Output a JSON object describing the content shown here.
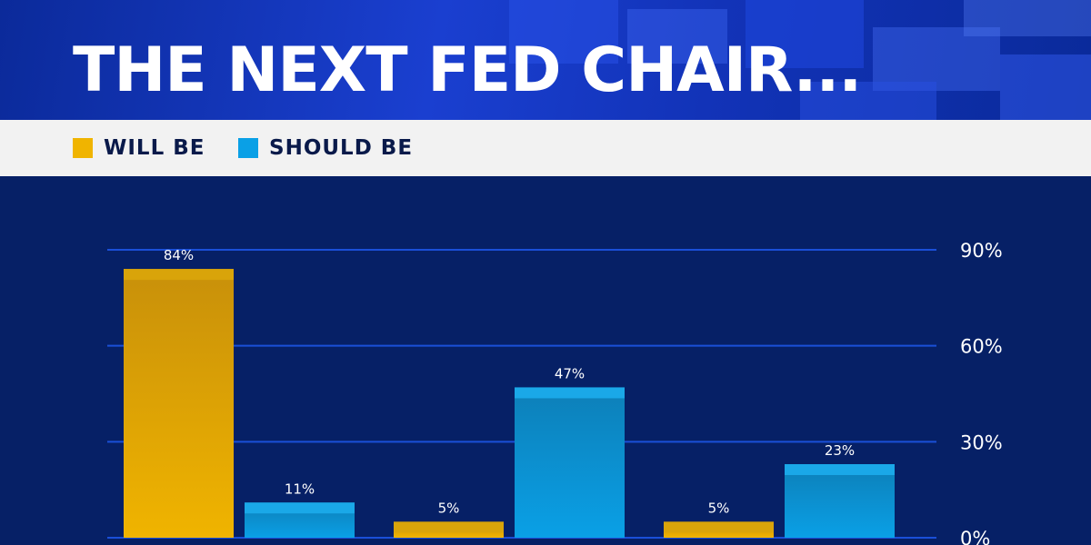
{
  "title": "THE NEXT FED CHAIR...",
  "legend": {
    "will_be": "WILL BE",
    "should_be": "SHOULD BE"
  },
  "colors": {
    "will_be": "#f0b400",
    "should_be": "#0aa0e6",
    "gridline": "#1a4fd8",
    "background": "#062066",
    "text": "#ffffff"
  },
  "chart_data": {
    "type": "bar",
    "title": "THE NEXT FED CHAIR...",
    "xlabel": "",
    "ylabel": "",
    "categories": [
      "",
      "",
      ""
    ],
    "series": [
      {
        "name": "WILL BE",
        "values": [
          84,
          5,
          5
        ],
        "labels": [
          "84%",
          "5%",
          "5%"
        ]
      },
      {
        "name": "SHOULD BE",
        "values": [
          11,
          47,
          23
        ],
        "labels": [
          "11%",
          "47%",
          "23%"
        ]
      }
    ],
    "ylim": [
      0,
      90
    ],
    "yticks": [
      0,
      30,
      60,
      90
    ],
    "ytick_labels": [
      "0%",
      "30%",
      "60%",
      "90%"
    ],
    "grid": true,
    "legend_position": "top-left"
  }
}
